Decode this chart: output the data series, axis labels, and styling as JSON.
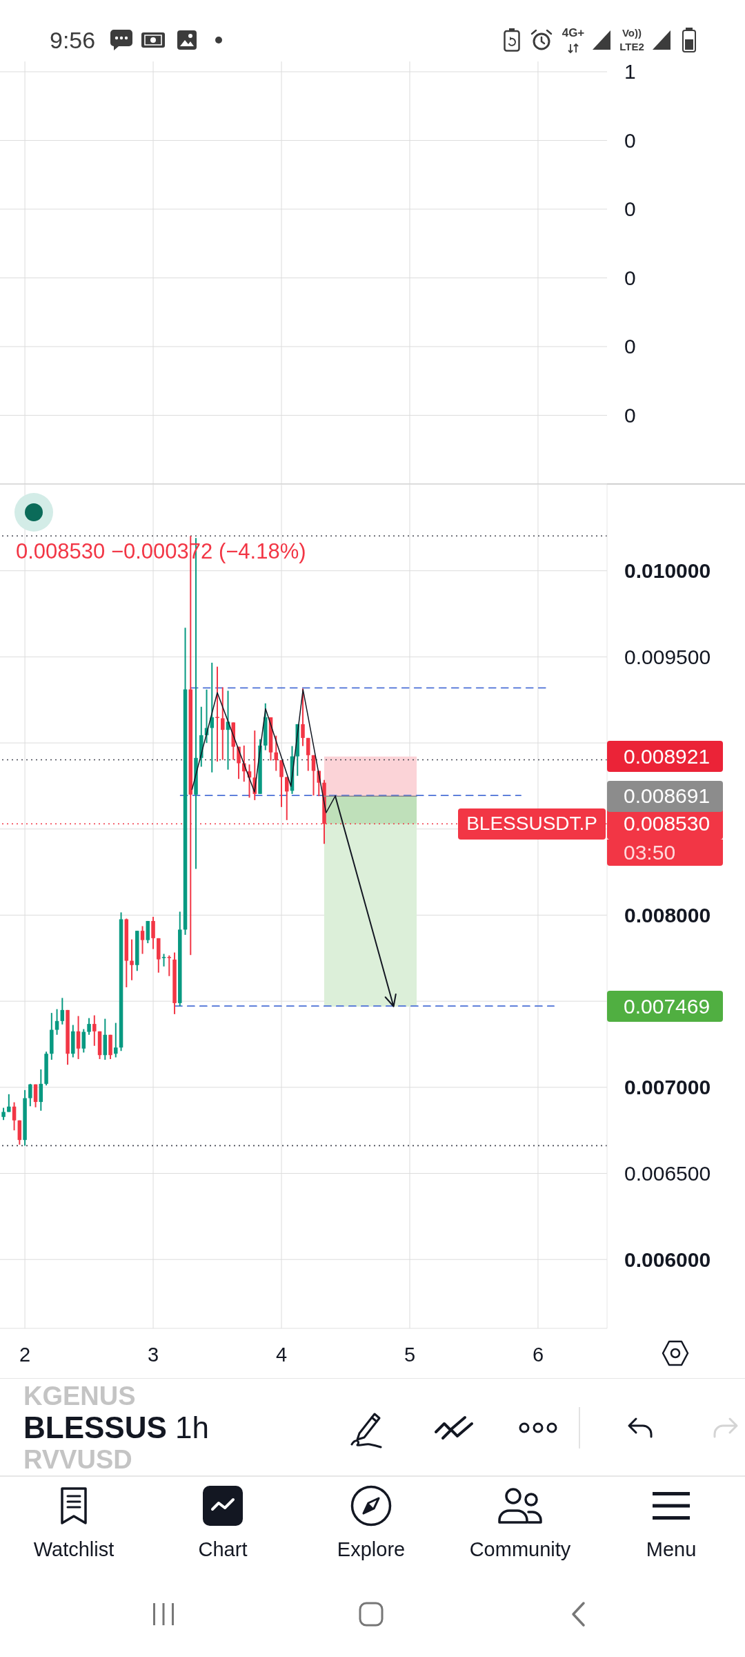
{
  "chart_data": [
    {
      "type": "other",
      "annotations": [
        "9:56",
        "4G+",
        "Vo))",
        "LTE2"
      ]
    },
    {
      "type": "line",
      "xlim": [
        1.806,
        6.538
      ],
      "xticks": [
        2,
        3,
        4,
        5,
        6
      ],
      "ylim": [
        -0.1,
        0.515
      ],
      "yticks": [
        {
          "value": 0.5,
          "label": "1"
        },
        {
          "value": 0.4,
          "label": "0"
        },
        {
          "value": 0.3,
          "label": "0"
        },
        {
          "value": 0.2,
          "label": "0"
        },
        {
          "value": 0.1,
          "label": "0"
        },
        {
          "value": 0,
          "label": "0"
        }
      ],
      "grid": true,
      "tick_labels": "y"
    },
    {
      "type": "candlestick",
      "x": [
        1.8333,
        1.875,
        1.9167,
        1.9583,
        2,
        2.0417,
        2.0833,
        2.125,
        2.1667,
        2.2083,
        2.25,
        2.2917,
        2.3333,
        2.375,
        2.4167,
        2.4583,
        2.5,
        2.5417,
        2.5833,
        2.625,
        2.6667,
        2.7083,
        2.75,
        2.7917,
        2.8333,
        2.875,
        2.9167,
        2.9583,
        3,
        3.0417,
        3.0833,
        3.125,
        3.1667,
        3.2083,
        3.25,
        3.2917,
        3.3333,
        3.375,
        3.4167,
        3.4583,
        3.5,
        3.5417,
        3.5833,
        3.625,
        3.6667,
        3.7083,
        3.75,
        3.7917,
        3.8333,
        3.875,
        3.9167,
        3.9583,
        4,
        4.0417,
        4.0833,
        4.125,
        4.1667,
        4.2083,
        4.25,
        4.2917,
        4.3333
      ],
      "ohlc": [
        [
          0.006828,
          0.006881,
          0.00681,
          0.006857
        ],
        [
          0.006857,
          0.00696,
          0.006857,
          0.006888
        ],
        [
          0.006888,
          0.006913,
          0.00675,
          0.006808
        ],
        [
          0.006808,
          0.006808,
          0.006667,
          0.006694
        ],
        [
          0.006694,
          0.006984,
          0.006661,
          0.006937
        ],
        [
          0.006937,
          0.00702,
          0.00689,
          0.007017
        ],
        [
          0.007017,
          0.007017,
          0.006884,
          0.006915
        ],
        [
          0.006915,
          0.007104,
          0.006864,
          0.00702
        ],
        [
          0.00702,
          0.007207,
          0.007011,
          0.007195
        ],
        [
          0.007195,
          0.007432,
          0.00716,
          0.007334
        ],
        [
          0.007334,
          0.007454,
          0.007305,
          0.007385
        ],
        [
          0.007385,
          0.007519,
          0.007365,
          0.007449
        ],
        [
          0.007449,
          0.007449,
          0.007131,
          0.007195
        ],
        [
          0.007195,
          0.007362,
          0.007174,
          0.007325
        ],
        [
          0.007325,
          0.007414,
          0.007164,
          0.007225
        ],
        [
          0.007225,
          0.007338,
          0.007202,
          0.007322
        ],
        [
          0.007322,
          0.007402,
          0.007305,
          0.007368
        ],
        [
          0.007368,
          0.007418,
          0.007241,
          0.007325
        ],
        [
          0.007325,
          0.007325,
          0.007164,
          0.007187
        ],
        [
          0.007187,
          0.007398,
          0.00716,
          0.007305
        ],
        [
          0.007305,
          0.007305,
          0.007164,
          0.007187
        ],
        [
          0.007195,
          0.007374,
          0.007174,
          0.007231
        ],
        [
          0.007231,
          0.008016,
          0.007211,
          0.007976
        ],
        [
          0.007976,
          0.00798,
          0.007581,
          0.007735
        ],
        [
          0.007735,
          0.007859,
          0.007622,
          0.00771
        ],
        [
          0.00771,
          0.007909,
          0.007676,
          0.007909
        ],
        [
          0.007909,
          0.007936,
          0.007775,
          0.007855
        ],
        [
          0.007855,
          0.007966,
          0.007837,
          0.007966
        ],
        [
          0.007966,
          0.00799,
          0.007803,
          0.007866
        ],
        [
          0.007866,
          0.007866,
          0.007666,
          0.007743
        ],
        [
          0.007753,
          0.007775,
          0.007702,
          0.007757
        ],
        [
          0.007757,
          0.007766,
          0.007646,
          0.007753
        ],
        [
          0.007742,
          0.007783,
          0.007425,
          0.007489
        ],
        [
          0.007489,
          0.00802,
          0.007472,
          0.007916
        ],
        [
          0.007916,
          0.009669,
          0.007886,
          0.009311
        ],
        [
          0.009311,
          0.010202,
          0.007768,
          0.0087
        ],
        [
          0.0087,
          0.01019,
          0.008269,
          0.008913
        ],
        [
          0.008913,
          0.00921,
          0.008862,
          0.009045
        ],
        [
          0.009045,
          0.00931,
          0.009,
          0.009087
        ],
        [
          0.009087,
          0.009466,
          0.008829,
          0.009149
        ],
        [
          0.009151,
          0.009443,
          0.008892,
          0.009145
        ],
        [
          0.009143,
          0.009323,
          0.008902,
          0.009076
        ],
        [
          0.009076,
          0.009303,
          0.008845,
          0.009123
        ],
        [
          0.009119,
          0.009119,
          0.008902,
          0.008978
        ],
        [
          0.008978,
          0.008978,
          0.008791,
          0.008882
        ],
        [
          0.008882,
          0.008985,
          0.008775,
          0.008835
        ],
        [
          0.008835,
          0.008875,
          0.008682,
          0.008799
        ],
        [
          0.008799,
          0.009072,
          0.008668,
          0.008704
        ],
        [
          0.008704,
          0.009022,
          0.008704,
          0.008985
        ],
        [
          0.008985,
          0.00923,
          0.008958,
          0.009149
        ],
        [
          0.009149,
          0.009149,
          0.008898,
          0.008945
        ],
        [
          0.008945,
          0.009042,
          0.008838,
          0.0089
        ],
        [
          0.0089,
          0.0089,
          0.008628,
          0.008802
        ],
        [
          0.008802,
          0.008802,
          0.008552,
          0.008718
        ],
        [
          0.008722,
          0.008982,
          0.008704,
          0.008922
        ],
        [
          0.008922,
          0.009109,
          0.008809,
          0.009109
        ],
        [
          0.009109,
          0.009316,
          0.008982,
          0.009029
        ],
        [
          0.009029,
          0.009029,
          0.008838,
          0.008929
        ],
        [
          0.008929,
          0.008929,
          0.008695,
          0.008838
        ],
        [
          0.008838,
          0.008838,
          0.008691,
          0.008769
        ],
        [
          0.008769,
          0.008785,
          0.008414,
          0.00853
        ]
      ],
      "colors": [
        "#089981",
        "#089981",
        "#f23645",
        "#f23645",
        "#089981",
        "#089981",
        "#f23645",
        "#089981",
        "#089981",
        "#089981",
        "#089981",
        "#089981",
        "#f23645",
        "#089981",
        "#f23645",
        "#089981",
        "#089981",
        "#f23645",
        "#f23645",
        "#089981",
        "#f23645",
        "#089981",
        "#089981",
        "#f23645",
        "#f23645",
        "#089981",
        "#f23645",
        "#089981",
        "#f23645",
        "#f23645",
        "#089981",
        "#f23645",
        "#f23645",
        "#089981",
        "#089981",
        "#f23645",
        "#089981",
        "#089981",
        "#089981",
        "#089981",
        "#f23645",
        "#f23645",
        "#089981",
        "#f23645",
        "#f23645",
        "#f23645",
        "#f23645",
        "#f23645",
        "#089981",
        "#089981",
        "#f23645",
        "#f23645",
        "#f23645",
        "#f23645",
        "#089981",
        "#089981",
        "#f23645",
        "#f23645",
        "#f23645",
        "#f23645",
        "#f23645"
      ],
      "series": [
        {
          "type": "line",
          "color": "#131722",
          "x": [
            3.303,
            3.5,
            3.79,
            3.876,
            4.074,
            4.168,
            4.348,
            4.419
          ],
          "values": [
            0.00873,
            0.009292,
            0.008715,
            0.009199,
            0.008748,
            0.00931,
            0.008595,
            0.008691
          ]
        },
        {
          "type": "line",
          "color": "#4a6fd6",
          "line_style": "dashed",
          "x": [
            3.294,
            6.067
          ],
          "values": [
            0.00932,
            0.00932
          ]
        },
        {
          "type": "line",
          "color": "#4a6fd6",
          "line_style": "dashed",
          "x": [
            3.213,
            5.866
          ],
          "values": [
            0.008695,
            0.008695
          ]
        },
        {
          "type": "line",
          "color": "#4a6fd6",
          "line_style": "dashed",
          "x": [
            3.171,
            6.124
          ],
          "values": [
            0.007472,
            0.007472
          ]
        },
        {
          "type": "line",
          "color": "#fbd3d7",
          "x": [
            4.333,
            5.054
          ],
          "values": [
            null,
            null
          ],
          "lower": [
            0.008691,
            0.008691
          ],
          "upper": [
            0.008921,
            0.008921
          ]
        },
        {
          "type": "line",
          "color": "#dcefd9",
          "x": [
            4.333,
            5.054
          ],
          "values": [
            null,
            null
          ],
          "lower": [
            0.007469,
            0.007469
          ],
          "upper": [
            0.008691,
            0.008691
          ]
        },
        {
          "type": "line",
          "color": "#bfe0ba",
          "x": [
            4.333,
            5.054
          ],
          "values": [
            null,
            null
          ],
          "lower": [
            0.00853,
            0.00853
          ],
          "upper": [
            0.008691,
            0.008691
          ]
        },
        {
          "type": "line",
          "color": "#8c8c8c",
          "x": [
            4.333,
            5.054
          ],
          "values": [
            0.008691,
            0.008691
          ]
        }
      ],
      "xlim": [
        1.806,
        6.538
      ],
      "xticks": [
        2,
        3,
        4,
        5,
        6
      ],
      "ylim": [
        0.0056,
        0.0105
      ],
      "yticks": [
        {
          "value": 0.006,
          "label": "0.006000"
        },
        {
          "value": 0.0065,
          "label": "0.006500"
        },
        {
          "value": 0.007,
          "label": "0.007000"
        },
        {
          "value": 0.0075,
          "label": null
        },
        {
          "value": 0.008,
          "label": "0.008000"
        },
        {
          "value": 0.0085,
          "label": null
        },
        {
          "value": 0.009,
          "label": null
        },
        {
          "value": 0.0095,
          "label": "0.009500"
        },
        {
          "value": 0.01,
          "label": "0.010000"
        }
      ],
      "grid": true,
      "ref_lines": [
        {
          "axis": "y",
          "value": 0.010202,
          "line_style": "dotted",
          "color": "#434651"
        },
        {
          "axis": "y",
          "value": 0.008902,
          "line_style": "dotted",
          "color": "#434651"
        },
        {
          "axis": "y",
          "value": 0.00853,
          "label": "0.008530",
          "line_style": "dotted",
          "color": "#f23645"
        },
        {
          "axis": "y",
          "value": 0.006661,
          "line_style": "dotted",
          "color": "#434651"
        }
      ],
      "annotations": [
        "0.008530 −0.000372 (−4.18%)",
        "03:50",
        "0.008921",
        "0.008691",
        "0.007469",
        {
          "text": "BLESSUSDT.P",
          "y": 0.00853
        }
      ]
    },
    {
      "type": "other",
      "annotations": [
        "KGENUS",
        "BLESSUS",
        "1h",
        "RVVUSD",
        "Watchlist",
        "Chart",
        "Explore",
        "Community",
        "Menu"
      ]
    }
  ]
}
